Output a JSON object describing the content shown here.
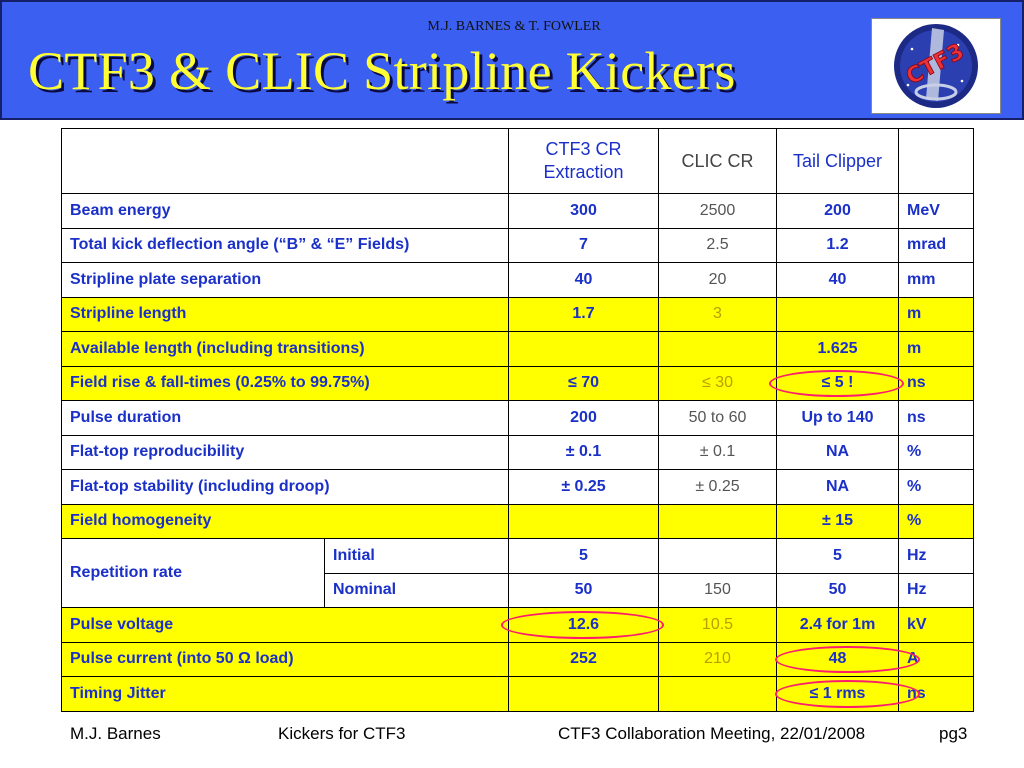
{
  "header": {
    "authors": "M.J. BARNES & T. FOWLER",
    "title": "CTF3 & CLIC Stripline Kickers",
    "logo_text": "CTF3",
    "colors": {
      "background": "#3b5ff0",
      "title": "#ffff33"
    }
  },
  "table": {
    "columns": [
      "CTF3 CR Extraction",
      "CLIC CR",
      "Tail Clipper"
    ],
    "rows": [
      {
        "label": "Beam energy",
        "values": [
          "300",
          "2500",
          "200"
        ],
        "unit": "MeV"
      },
      {
        "label": "Total kick deflection angle (“B” & “E” Fields)",
        "values": [
          "7",
          "2.5",
          "1.2"
        ],
        "unit": "mrad"
      },
      {
        "label": "Stripline plate separation",
        "values": [
          "40",
          "20",
          "40"
        ],
        "unit": "mm"
      },
      {
        "label": "Stripline length",
        "values": [
          "1.7",
          "3",
          ""
        ],
        "unit": "m"
      },
      {
        "label": "Available length (including transitions)",
        "values": [
          "",
          "",
          "1.625"
        ],
        "unit": "m"
      },
      {
        "label": "Field rise & fall-times (0.25% to 99.75%)",
        "values": [
          "≤ 70",
          "≤ 30",
          "≤ 5 !"
        ],
        "unit": "ns"
      },
      {
        "label": "Pulse duration",
        "values": [
          "200",
          "50 to 60",
          "Up to 140"
        ],
        "unit": "ns"
      },
      {
        "label": "Flat-top reproducibility",
        "values": [
          "± 0.1",
          "± 0.1",
          "NA"
        ],
        "unit": "%"
      },
      {
        "label": "Flat-top stability (including droop)",
        "values": [
          "± 0.25",
          "± 0.25",
          "NA"
        ],
        "unit": "%"
      },
      {
        "label": "Field homogeneity",
        "values": [
          "",
          "",
          "± 15"
        ],
        "unit": "%"
      },
      {
        "label": "Repetition rate",
        "sub": "Initial",
        "values": [
          "5",
          "",
          "5"
        ],
        "unit": "Hz"
      },
      {
        "sub": "Nominal",
        "values": [
          "50",
          "150",
          "50"
        ],
        "unit": "Hz"
      },
      {
        "label": "Pulse voltage",
        "values": [
          "12.6",
          "10.5",
          "2.4 for 1m"
        ],
        "unit": "kV"
      },
      {
        "label": "Pulse current (into 50 Ω load)",
        "values": [
          "252",
          "210",
          "48"
        ],
        "unit": "A"
      },
      {
        "label": "Timing Jitter",
        "values": [
          "",
          "",
          "≤ 1 rms"
        ],
        "unit": "ns"
      }
    ]
  },
  "footer": {
    "author": "M.J. Barnes",
    "topic": "Kickers for CTF3",
    "meeting": "CTF3 Collaboration Meeting, 22/01/2008",
    "page": "pg3"
  }
}
